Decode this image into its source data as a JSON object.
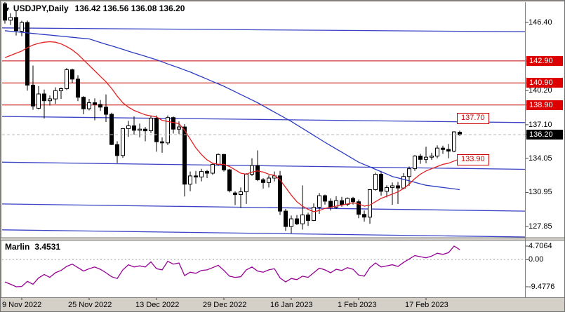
{
  "window": {
    "menu_arrow": "▼",
    "symbol_period": "USDJPY,Daily",
    "ohlc": "136.42 136.56 136.08 136.20"
  },
  "indicator": {
    "name": "Marlin",
    "value": "3.4531"
  },
  "colors": {
    "background": "#d4d0c8",
    "pane": "#ffffff",
    "bull": "#ffffff",
    "bear": "#000000",
    "wick": "#000000",
    "trendline": "#3742c4",
    "ma_long": "#2b3cc0",
    "ma_short": "#e02020",
    "level": "#cc0000",
    "level_label_bg": "#dd0000",
    "current_label_bg": "#000000",
    "target": "#cc0000",
    "indicator_line": "#950095",
    "bid_line": "#b8b8b8",
    "axis_tick": "#404040",
    "separator": "#808080"
  },
  "chart_data": {
    "type": "candlestick",
    "symbol": "USDJPY",
    "timeframe": "Daily",
    "price_axis_ticks": [
      {
        "text": "146.40",
        "value": 146.4
      },
      {
        "text": "140.20",
        "value": 140.2
      },
      {
        "text": "137.10",
        "value": 137.1
      },
      {
        "text": "134.05",
        "value": 134.05
      },
      {
        "text": "130.95",
        "value": 130.95
      },
      {
        "text": "127.85",
        "value": 127.85
      }
    ],
    "resistance_levels": [
      {
        "text": "142.90",
        "value": 142.9
      },
      {
        "text": "140.90",
        "value": 140.9
      },
      {
        "text": "138.90",
        "value": 138.9
      }
    ],
    "target_labels": [
      {
        "text": "137.70",
        "value": 137.7
      },
      {
        "text": "133.90",
        "value": 133.9
      }
    ],
    "current_price": {
      "text": "136.20",
      "value": 136.2
    },
    "indicator_axis_ticks": [
      {
        "text": "4.7064",
        "value": 4.7064
      },
      {
        "text": "0.00",
        "value": 0
      },
      {
        "text": "-9.4776",
        "value": -9.4776
      }
    ],
    "x_ticks": [
      {
        "index": 3,
        "label": "9 Nov 2022"
      },
      {
        "index": 15,
        "label": "25 Nov 2022"
      },
      {
        "index": 27,
        "label": "13 Dec 2022"
      },
      {
        "index": 39,
        "label": "29 Dec 2022"
      },
      {
        "index": 51,
        "label": "16 Jan 2023"
      },
      {
        "index": 63,
        "label": "1 Feb 2023"
      },
      {
        "index": 75,
        "label": "17 Feb 2023"
      }
    ],
    "trendlines": [
      {
        "start": 145.9,
        "end": 145.55
      },
      {
        "start": 137.85,
        "end": 137.3
      },
      {
        "start": 133.7,
        "end": 133.05
      },
      {
        "start": 129.9,
        "end": 129.25
      },
      {
        "start": 127.55,
        "end": 126.9
      }
    ],
    "candles": [
      [
        148.1,
        148.4,
        146.3,
        146.6
      ],
      [
        146.6,
        147.25,
        146.15,
        146.85
      ],
      [
        146.85,
        147.5,
        145.2,
        145.65
      ],
      [
        145.6,
        146.55,
        145.15,
        146.4
      ],
      [
        146.4,
        146.58,
        140.2,
        140.7
      ],
      [
        140.7,
        142.48,
        138.46,
        138.8
      ],
      [
        138.6,
        140.62,
        138.5,
        139.9
      ],
      [
        139.9,
        140.3,
        137.67,
        139.28
      ],
      [
        139.28,
        139.75,
        138.85,
        139.45
      ],
      [
        139.45,
        140.5,
        139.0,
        140.2
      ],
      [
        140.2,
        140.48,
        139.45,
        140.38
      ],
      [
        140.38,
        142.25,
        140.25,
        142.1
      ],
      [
        142.1,
        142.2,
        140.9,
        141.25
      ],
      [
        141.25,
        141.6,
        139.25,
        139.6
      ],
      [
        139.6,
        139.7,
        138.05,
        138.55
      ],
      [
        138.55,
        139.45,
        138.4,
        139.1
      ],
      [
        139.1,
        139.5,
        137.5,
        138.95
      ],
      [
        138.95,
        139.35,
        138.35,
        138.7
      ],
      [
        138.7,
        139.85,
        137.35,
        138.05
      ],
      [
        138.05,
        138.2,
        135.25,
        135.3
      ],
      [
        135.3,
        135.6,
        133.62,
        134.3
      ],
      [
        134.3,
        136.8,
        134.1,
        136.75
      ],
      [
        136.75,
        137.45,
        136.0,
        137.0
      ],
      [
        137.0,
        137.85,
        136.2,
        136.6
      ],
      [
        136.6,
        137.2,
        135.95,
        136.7
      ],
      [
        136.7,
        136.9,
        135.6,
        136.55
      ],
      [
        136.55,
        137.95,
        136.35,
        137.7
      ],
      [
        137.7,
        137.95,
        134.65,
        135.55
      ],
      [
        135.55,
        135.95,
        134.55,
        135.45
      ],
      [
        135.45,
        137.95,
        135.25,
        137.75
      ],
      [
        137.75,
        137.85,
        136.3,
        136.7
      ],
      [
        136.7,
        137.4,
        136.25,
        136.9
      ],
      [
        136.9,
        137.15,
        130.58,
        131.7
      ],
      [
        131.7,
        132.85,
        131.05,
        132.45
      ],
      [
        132.45,
        132.9,
        131.75,
        132.35
      ],
      [
        132.35,
        133.1,
        131.95,
        132.85
      ],
      [
        132.85,
        133.0,
        132.25,
        132.7
      ],
      [
        132.7,
        133.6,
        132.55,
        133.5
      ],
      [
        133.5,
        134.5,
        133.35,
        134.4
      ],
      [
        134.4,
        134.45,
        132.85,
        133.0
      ],
      [
        133.0,
        133.1,
        130.95,
        131.1
      ],
      [
        130.9,
        131.05,
        129.8,
        130.75
      ],
      [
        130.75,
        131.4,
        129.52,
        131.0
      ],
      [
        131.0,
        132.7,
        129.9,
        132.6
      ],
      [
        132.6,
        134.05,
        132.45,
        133.4
      ],
      [
        133.4,
        134.77,
        131.98,
        132.1
      ],
      [
        132.1,
        132.25,
        131.3,
        131.85
      ],
      [
        131.85,
        132.5,
        131.4,
        132.25
      ],
      [
        132.25,
        132.85,
        131.95,
        132.45
      ],
      [
        132.45,
        132.9,
        128.9,
        129.25
      ],
      [
        129.25,
        129.45,
        127.46,
        127.85
      ],
      [
        127.85,
        128.85,
        127.23,
        128.55
      ],
      [
        128.55,
        128.9,
        127.98,
        128.1
      ],
      [
        128.1,
        131.58,
        127.57,
        128.9
      ],
      [
        128.9,
        129.1,
        127.9,
        128.4
      ],
      [
        128.4,
        129.95,
        128.35,
        129.6
      ],
      [
        129.6,
        130.9,
        129.0,
        130.65
      ],
      [
        130.65,
        130.75,
        129.85,
        130.15
      ],
      [
        130.15,
        130.4,
        129.3,
        129.6
      ],
      [
        129.6,
        130.6,
        129.45,
        130.2
      ],
      [
        130.2,
        130.55,
        129.65,
        129.85
      ],
      [
        129.85,
        130.5,
        129.7,
        130.4
      ],
      [
        130.4,
        130.55,
        129.85,
        130.1
      ],
      [
        130.1,
        130.3,
        128.6,
        128.95
      ],
      [
        128.95,
        129.3,
        128.3,
        128.7
      ],
      [
        128.7,
        131.25,
        128.1,
        131.2
      ],
      [
        131.2,
        132.75,
        131.1,
        132.6
      ],
      [
        132.6,
        132.9,
        130.65,
        131.05
      ],
      [
        131.05,
        131.6,
        130.5,
        131.4
      ],
      [
        131.4,
        131.85,
        129.82,
        131.55
      ],
      [
        131.55,
        131.9,
        129.9,
        131.35
      ],
      [
        131.35,
        132.7,
        131.25,
        132.4
      ],
      [
        132.4,
        133.3,
        131.55,
        133.1
      ],
      [
        133.1,
        134.35,
        132.9,
        134.25
      ],
      [
        134.25,
        134.45,
        133.55,
        133.95
      ],
      [
        133.95,
        135.1,
        133.6,
        134.15
      ],
      [
        134.15,
        134.55,
        133.9,
        134.25
      ],
      [
        134.25,
        135.22,
        134.05,
        134.98
      ],
      [
        134.98,
        135.2,
        134.45,
        134.85
      ],
      [
        134.85,
        135.35,
        134.05,
        134.7
      ],
      [
        134.7,
        136.5,
        134.6,
        136.45
      ],
      [
        136.42,
        136.56,
        136.08,
        136.2
      ]
    ],
    "ma_long": [
      145.65,
      145.6,
      145.55,
      145.5,
      145.45,
      145.4,
      145.35,
      145.3,
      145.25,
      145.2,
      145.15,
      145.1,
      145.05,
      145.0,
      144.95,
      144.9,
      144.74,
      144.58,
      144.42,
      144.27,
      144.11,
      143.95,
      143.79,
      143.63,
      143.48,
      143.32,
      143.16,
      143.0,
      142.82,
      142.63,
      142.45,
      142.27,
      142.08,
      141.9,
      141.68,
      141.47,
      141.25,
      141.03,
      140.82,
      140.6,
      140.35,
      140.1,
      139.85,
      139.6,
      139.35,
      139.1,
      138.82,
      138.53,
      138.25,
      137.97,
      137.68,
      137.4,
      137.08,
      136.77,
      136.45,
      136.13,
      135.82,
      135.5,
      135.2,
      134.9,
      134.6,
      134.3,
      134.0,
      133.7,
      133.48,
      133.27,
      133.05,
      132.83,
      132.62,
      132.4,
      132.27,
      132.13,
      132.0,
      131.87,
      131.73,
      131.6,
      131.53,
      131.47,
      131.4,
      131.33,
      131.27,
      131.2
    ],
    "ma_short": [
      143.2,
      143.4,
      143.6,
      143.8,
      144.1,
      144.35,
      144.5,
      144.6,
      144.65,
      144.6,
      144.45,
      144.2,
      143.9,
      143.5,
      143.0,
      142.5,
      142.0,
      141.5,
      141.0,
      140.4,
      139.7,
      139.1,
      138.7,
      138.4,
      138.2,
      138.0,
      137.9,
      137.8,
      137.5,
      137.4,
      137.3,
      137.2,
      136.6,
      135.8,
      135.0,
      134.4,
      133.9,
      133.6,
      133.5,
      133.5,
      133.3,
      133.0,
      132.7,
      132.6,
      132.8,
      132.9,
      132.8,
      132.6,
      132.5,
      132.1,
      131.4,
      130.7,
      130.1,
      129.7,
      129.4,
      129.2,
      129.3,
      129.5,
      129.6,
      129.7,
      129.8,
      129.9,
      130.0,
      129.9,
      129.7,
      129.8,
      130.1,
      130.4,
      130.6,
      130.8,
      131.0,
      131.3,
      131.7,
      132.2,
      132.6,
      132.9,
      133.1,
      133.3,
      133.5,
      133.6,
      133.8,
      134.0
    ],
    "marlin_values": [
      -7.8,
      -8.6,
      -9.4776,
      -9.4,
      -7.6,
      -8.6,
      -6.4,
      -5.2,
      -6.2,
      -4.6,
      -3.8,
      -2.4,
      -1.6,
      -2.8,
      -4.0,
      -3.2,
      -2.6,
      -3.4,
      -4.6,
      -6.0,
      -6.6,
      -3.6,
      -1.8,
      -2.6,
      -2.2,
      -2.6,
      -0.8,
      -3.2,
      -3.6,
      -0.6,
      -1.6,
      -1.2,
      -5.6,
      -4.4,
      -4.8,
      -3.8,
      -3.6,
      -2.8,
      -2.0,
      -3.8,
      -5.8,
      -6.2,
      -6.0,
      -3.6,
      -2.6,
      -4.0,
      -4.4,
      -3.6,
      -3.2,
      -6.4,
      -7.8,
      -6.6,
      -7.0,
      -5.8,
      -6.2,
      -4.6,
      -3.0,
      -3.6,
      -4.6,
      -3.4,
      -3.8,
      -2.8,
      -3.4,
      -5.4,
      -5.8,
      -2.8,
      -1.2,
      -2.6,
      -2.2,
      -1.8,
      -2.4,
      -1.0,
      0.2,
      1.4,
      1.0,
      0.6,
      1.2,
      2.2,
      1.8,
      2.4,
      4.7064,
      3.4531
    ]
  }
}
